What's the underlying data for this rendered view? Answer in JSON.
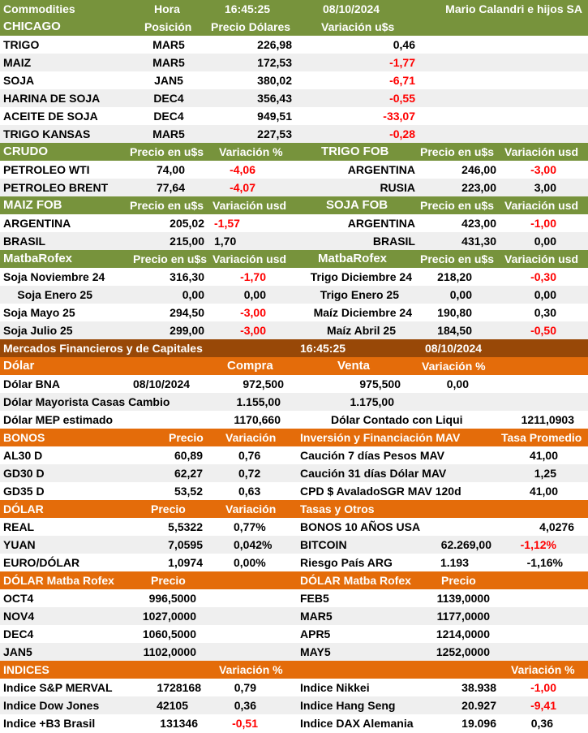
{
  "colors": {
    "green": "#77933c",
    "orange": "#e46c0a",
    "brown": "#984807",
    "negative": "#ff0000",
    "row_gray": "#efefef"
  },
  "top": {
    "title": "Commodities",
    "hora_label": "Hora",
    "time": "16:45:25",
    "date": "08/10/2024",
    "company": "Mario Calandri e hijos SA"
  },
  "chicago": {
    "header": {
      "title": "CHICAGO",
      "col1": "Posición",
      "col2": "Precio Dólares",
      "col3": "Variación u$s"
    },
    "rows": [
      {
        "name": "TRIGO",
        "pos": "MAR5",
        "price": "226,98",
        "var": "0,46"
      },
      {
        "name": "MAIZ",
        "pos": "MAR5",
        "price": "172,53",
        "var": "-1,77"
      },
      {
        "name": "SOJA",
        "pos": "JAN5",
        "price": "380,02",
        "var": "-6,71"
      },
      {
        "name": "HARINA DE SOJA",
        "pos": "DEC4",
        "price": "356,43",
        "var": "-0,55"
      },
      {
        "name": "ACEITE DE SOJA",
        "pos": "DEC4",
        "price": "949,51",
        "var": "-33,07"
      },
      {
        "name": "TRIGO KANSAS",
        "pos": "MAR5",
        "price": "227,53",
        "var": "-0,28"
      }
    ]
  },
  "crudo": {
    "header": {
      "title": "CRUDO",
      "col1": "Precio en u$s",
      "col2": "Variación %"
    },
    "rows": [
      {
        "name": "PETROLEO WTI",
        "price": "74,00",
        "var": "-4,06"
      },
      {
        "name": "PETROLEO BRENT",
        "price": "77,64",
        "var": "-4,07"
      }
    ]
  },
  "trigo_fob": {
    "header": {
      "title": "TRIGO FOB",
      "col1": "Precio en u$s",
      "col2": "Variación usd"
    },
    "rows": [
      {
        "name": "ARGENTINA",
        "price": "246,00",
        "var": "-3,00"
      },
      {
        "name": "RUSIA",
        "price": "223,00",
        "var": "3,00"
      }
    ]
  },
  "maiz_fob": {
    "header": {
      "title": "MAIZ FOB",
      "col1": "Precio en u$s",
      "col2": "Variación usd"
    },
    "rows": [
      {
        "name": "ARGENTINA",
        "price": "205,02",
        "var": "-1,57"
      },
      {
        "name": "BRASIL",
        "price": "215,00",
        "var": "1,70"
      }
    ]
  },
  "soja_fob": {
    "header": {
      "title": "SOJA FOB",
      "col1": "Precio en u$s",
      "col2": "Variación usd"
    },
    "rows": [
      {
        "name": "ARGENTINA",
        "price": "423,00",
        "var": "-1,00"
      },
      {
        "name": "BRASIL",
        "price": "431,30",
        "var": "0,00"
      }
    ]
  },
  "matba_left": {
    "header": {
      "title": "MatbaRofex",
      "col1": "Precio en u$s",
      "col2": "Variación usd"
    },
    "rows": [
      {
        "name": "Soja Noviembre 24",
        "price": "316,30",
        "var": "-1,70"
      },
      {
        "name": "Soja Enero 25",
        "price": "0,00",
        "var": "0,00"
      },
      {
        "name": "Soja Mayo 25",
        "price": "294,50",
        "var": "-3,00"
      },
      {
        "name": "Soja Julio 25",
        "price": "299,00",
        "var": "-3,00"
      }
    ]
  },
  "matba_right": {
    "header": {
      "title": "MatbaRofex",
      "col1": "Precio en u$s",
      "col2": "Variación usd"
    },
    "rows": [
      {
        "name": "Trigo Diciembre 24",
        "price": "218,20",
        "var": "-0,30"
      },
      {
        "name": "Trigo Enero 25",
        "price": "0,00",
        "var": "0,00"
      },
      {
        "name": "Maíz Diciembre 24",
        "price": "190,80",
        "var": "0,30"
      },
      {
        "name": "Maíz Abril 25",
        "price": "184,50",
        "var": "-0,50"
      }
    ]
  },
  "mercados": {
    "title": "Mercados Financieros y de Capitales",
    "time": "16:45:25",
    "date": "08/10/2024"
  },
  "dolar_header": {
    "title": "Dólar",
    "compra": "Compra",
    "venta": "Venta",
    "var": "Variación %"
  },
  "dolar_rows": {
    "bna": {
      "name": "Dólar BNA",
      "date": "08/10/2024",
      "compra": "972,500",
      "venta": "975,500",
      "var": "0,00"
    },
    "mayorista": {
      "name": "Dólar Mayorista Casas Cambio",
      "compra": "1.155,00",
      "venta": "1.175,00"
    },
    "mep": {
      "name": "Dólar MEP estimado",
      "value": "1170,660",
      "ccl_name": "Dólar Contado con Liqui",
      "ccl_value": "1211,0903"
    }
  },
  "bonos": {
    "header": {
      "title": "BONOS",
      "col1": "Precio",
      "col2": "Variación",
      "title2": "Inversión y Financiación MAV",
      "col3": "Tasa Promedio"
    },
    "rows": [
      {
        "name": "AL30 D",
        "price": "60,89",
        "var": "0,76",
        "name2": "Caución 7 días Pesos MAV",
        "rate": "41,00"
      },
      {
        "name": "GD30 D",
        "price": "62,27",
        "var": "0,72",
        "name2": "Caución 31 días Dólar MAV",
        "rate": "1,25"
      },
      {
        "name": "GD35 D",
        "price": "53,52",
        "var": "0,63",
        "name2": "CPD $ AvaladoSGR  MAV 120d",
        "rate": "41,00"
      }
    ]
  },
  "dolar_fx": {
    "header": {
      "title": "DÓLAR",
      "col1": "Precio",
      "col2": "Variación",
      "title2": "Tasas y Otros"
    },
    "rows": [
      {
        "name": "REAL",
        "price": "5,5322",
        "var": "0,77%",
        "name2": "BONOS 10 AÑOS USA",
        "val2": "",
        "var2": "4,0276"
      },
      {
        "name": "YUAN",
        "price": "7,0595",
        "var": "0,042%",
        "name2": "BITCOIN",
        "val2": "62.269,00",
        "var2": "-1,12%"
      },
      {
        "name": "EURO/DÓLAR",
        "price": "1,0974",
        "var": "0,00%",
        "name2": "Riesgo País ARG",
        "val2": "1.193",
        "var2": "-1,16%"
      }
    ]
  },
  "dolar_matba": {
    "header": {
      "title": "DÓLAR Matba Rofex",
      "col1": "Precio",
      "title2": "DÓLAR Matba Rofex",
      "col2": "Precio"
    },
    "rows": [
      {
        "name": "OCT4",
        "price": "996,5000",
        "name2": "FEB5",
        "price2": "1139,0000"
      },
      {
        "name": "NOV4",
        "price": "1027,0000",
        "name2": "MAR5",
        "price2": "1177,0000"
      },
      {
        "name": "DEC4",
        "price": "1060,5000",
        "name2": "APR5",
        "price2": "1214,0000"
      },
      {
        "name": "JAN5",
        "price": "1102,0000",
        "name2": "MAY5",
        "price2": "1252,0000"
      }
    ]
  },
  "indices": {
    "header": {
      "title": "INDICES",
      "col1": "Variación %",
      "col2": "Variación %"
    },
    "rows": [
      {
        "name": "Indice S&P MERVAL",
        "val": "1728168",
        "var": "0,79",
        "name2": "Indice Nikkei",
        "val2": "38.938",
        "var2": "-1,00"
      },
      {
        "name": "Indice Dow Jones",
        "val": "42105",
        "var": "0,36",
        "name2": "Indice Hang Seng",
        "val2": "20.927",
        "var2": "-9,41"
      },
      {
        "name": "Indice +B3 Brasil",
        "val": "131346",
        "var": "-0,51",
        "name2": "Indice DAX Alemania",
        "val2": "19.096",
        "var2": "0,36"
      }
    ]
  }
}
